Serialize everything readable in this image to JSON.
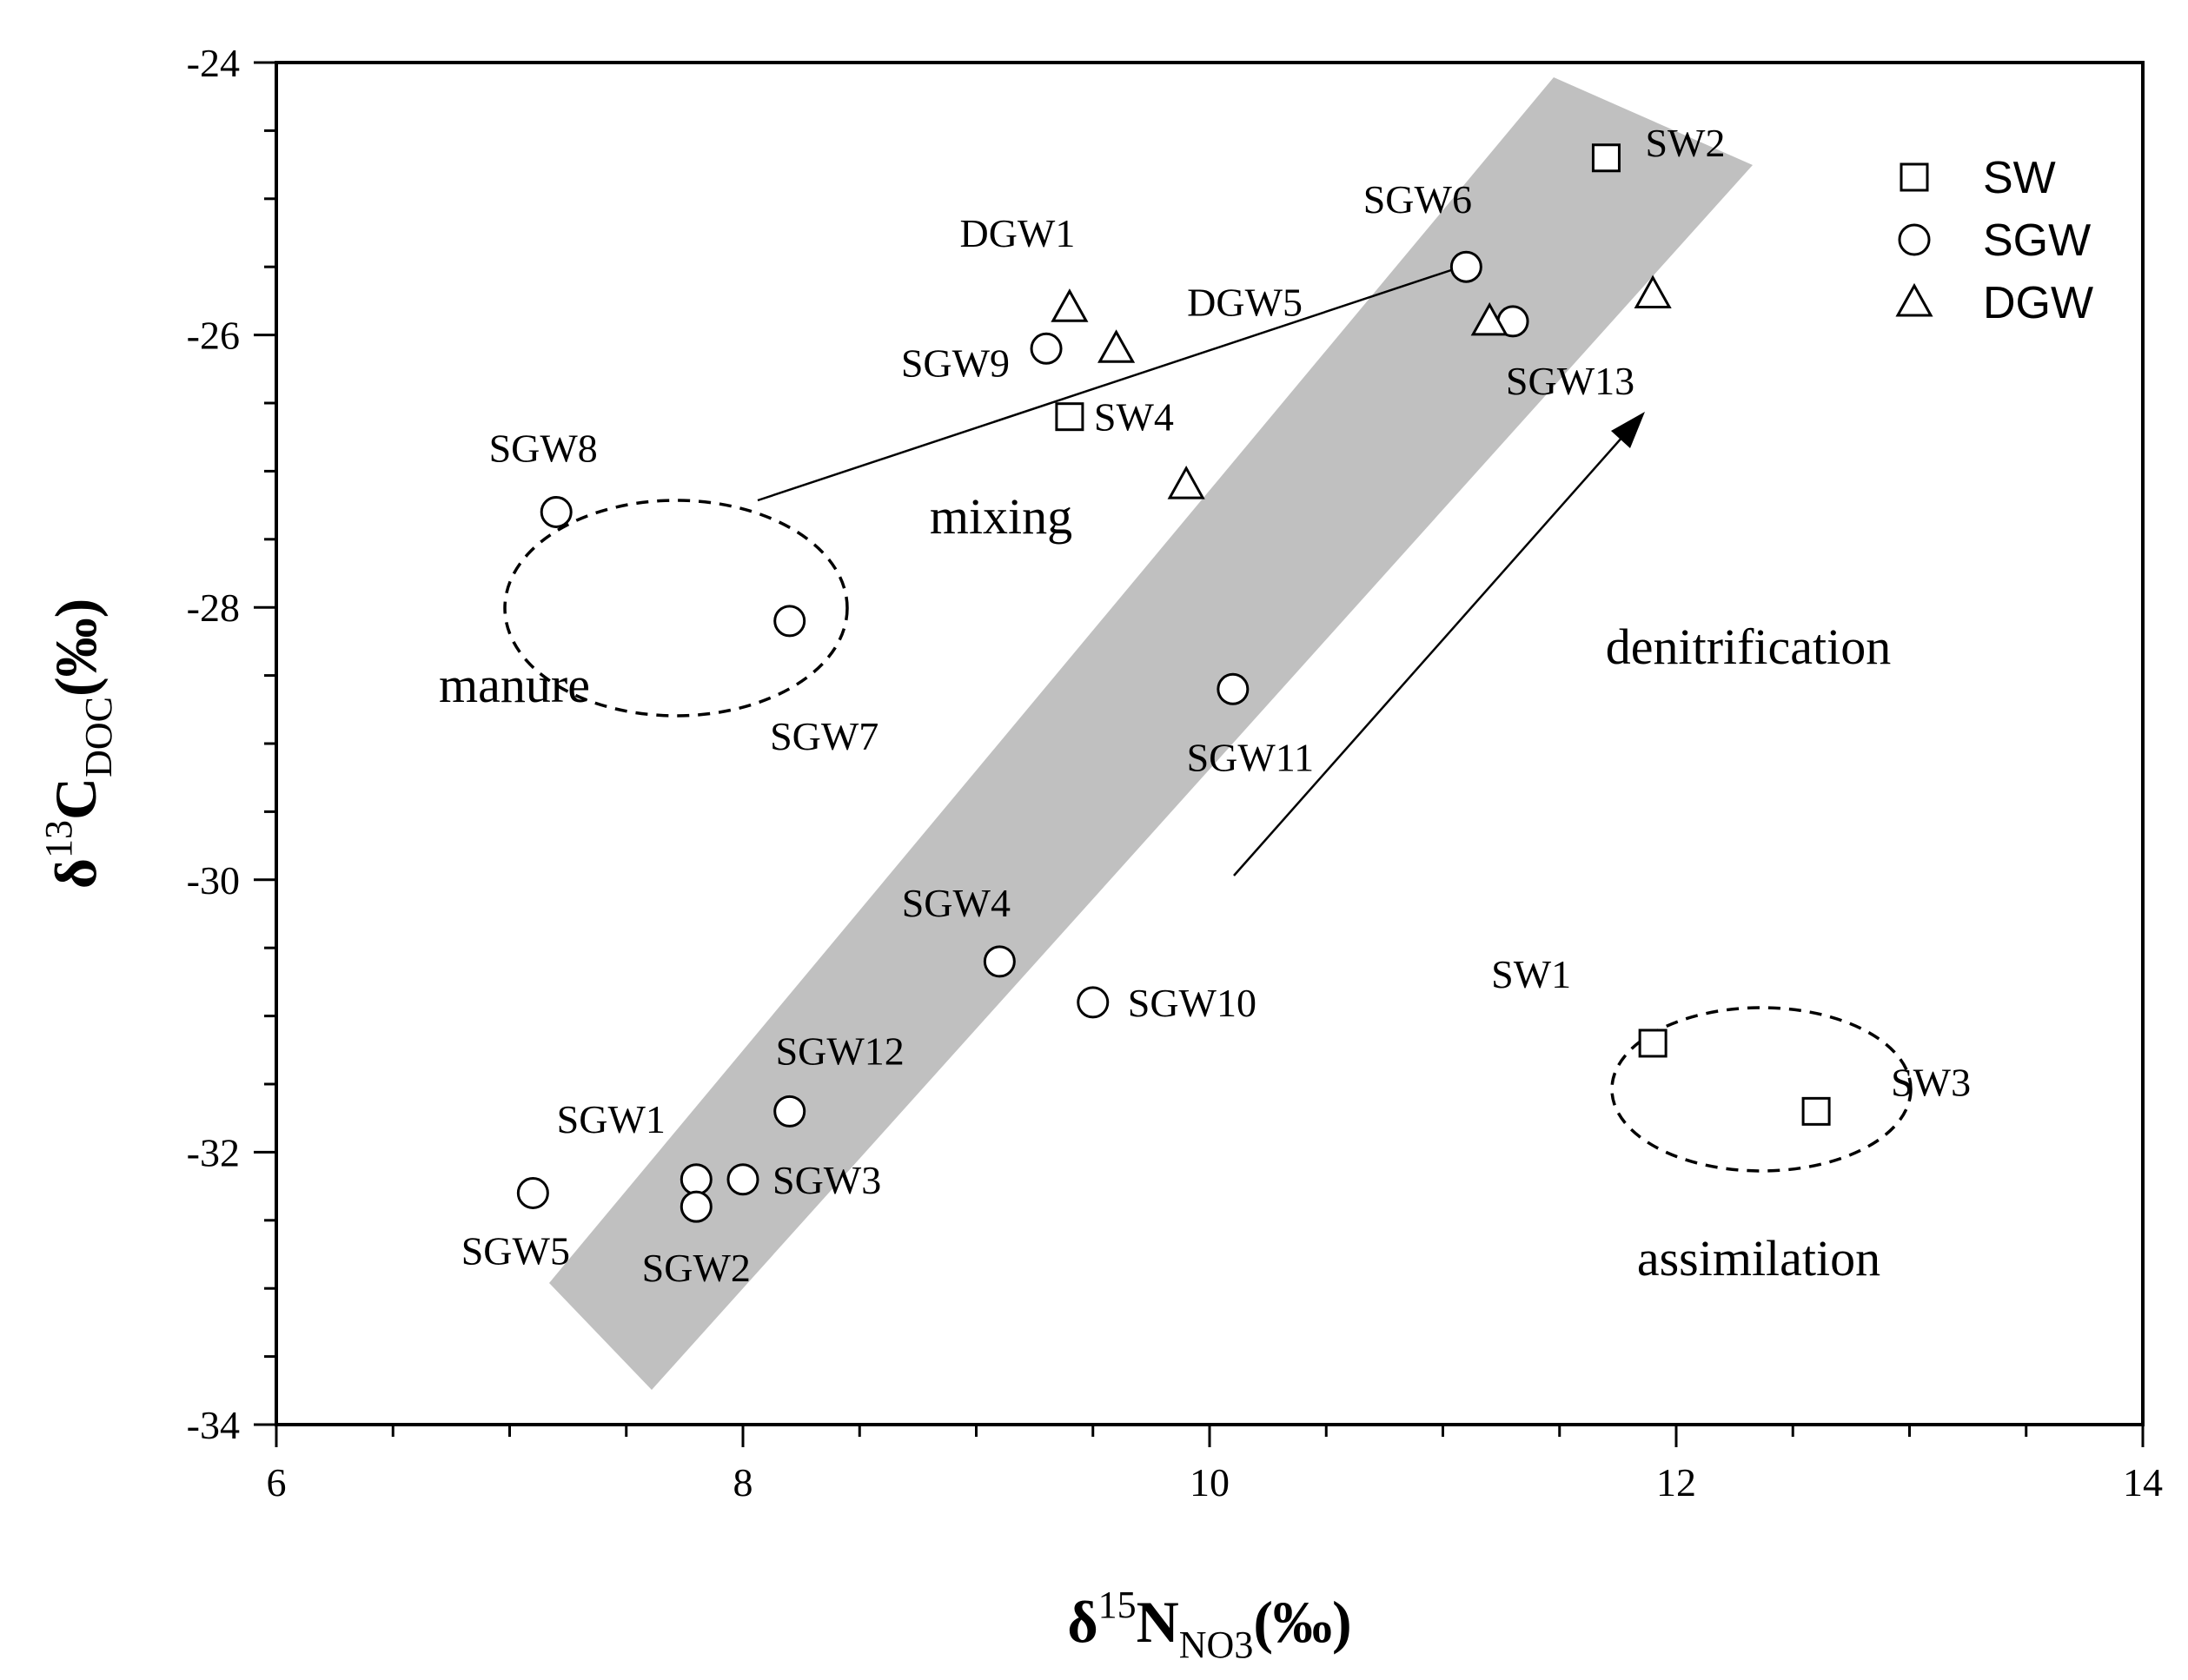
{
  "chart_data": {
    "type": "scatter",
    "xlabel": {
      "base": "δ",
      "sup": "15",
      "main": "N",
      "sub": "NO3",
      "tail": "(‰)"
    },
    "ylabel": {
      "base": "δ",
      "sup": "13",
      "main": "C",
      "sub": "DOC",
      "tail": "(‰)"
    },
    "xlim": [
      6,
      14
    ],
    "ylim": [
      -34,
      -24
    ],
    "xticks": [
      6,
      8,
      10,
      12,
      14
    ],
    "yticks": [
      -24,
      -26,
      -28,
      -30,
      -32,
      -34
    ],
    "grid": false,
    "legend_position": "top-right",
    "series": [
      {
        "name": "SW",
        "marker": "square",
        "points": [
          {
            "label": "SW2",
            "x": 11.7,
            "y": -24.7
          },
          {
            "label": "SW4",
            "x": 9.4,
            "y": -26.6
          },
          {
            "label": "SW1",
            "x": 11.9,
            "y": -31.2
          },
          {
            "label": "SW3",
            "x": 12.6,
            "y": -31.7
          }
        ]
      },
      {
        "name": "SGW",
        "marker": "circle",
        "points": [
          {
            "label": "SGW6",
            "x": 11.1,
            "y": -25.5
          },
          {
            "label": "SGW13",
            "x": 11.3,
            "y": -25.9
          },
          {
            "label": "SGW9",
            "x": 9.3,
            "y": -26.1
          },
          {
            "label": "SGW8",
            "x": 7.2,
            "y": -27.3
          },
          {
            "label": "SGW7",
            "x": 8.2,
            "y": -28.1
          },
          {
            "label": "SGW11",
            "x": 10.1,
            "y": -28.6
          },
          {
            "label": "SGW4",
            "x": 9.1,
            "y": -30.6
          },
          {
            "label": "SGW10",
            "x": 9.5,
            "y": -30.9
          },
          {
            "label": "SGW12",
            "x": 8.2,
            "y": -31.7
          },
          {
            "label": "SGW1",
            "x": 7.8,
            "y": -32.2
          },
          {
            "label": "SGW3",
            "x": 8.0,
            "y": -32.2
          },
          {
            "label": "SGW2",
            "x": 7.8,
            "y": -32.4
          },
          {
            "label": "SGW5",
            "x": 7.1,
            "y": -32.3
          }
        ]
      },
      {
        "name": "DGW",
        "marker": "triangle",
        "points": [
          {
            "label": "DGW1",
            "x": 9.4,
            "y": -25.8
          },
          {
            "label": "DGW5",
            "x": 9.6,
            "y": -26.1
          },
          {
            "label": "",
            "x": 9.9,
            "y": -27.1
          },
          {
            "label": "",
            "x": 11.2,
            "y": -25.9
          },
          {
            "label": "",
            "x": 11.9,
            "y": -25.7
          }
        ]
      }
    ],
    "annotations": [
      {
        "text": "manure"
      },
      {
        "text": "mixing"
      },
      {
        "text": "denitrification"
      },
      {
        "text": "assimilation"
      }
    ]
  }
}
